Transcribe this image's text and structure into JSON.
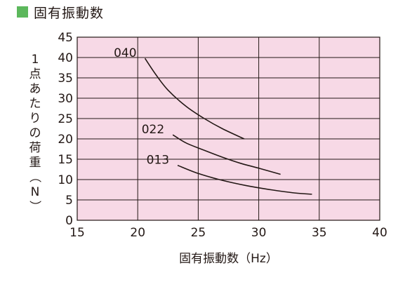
{
  "header": {
    "title": "固有振動数",
    "marker_color": "#5cb85c"
  },
  "chart_data": {
    "type": "line",
    "xlabel": "固有振動数（Hz）",
    "ylabel": "1点あたりの荷重（N）",
    "xlim": [
      15,
      40
    ],
    "ylim": [
      0,
      45
    ],
    "xticks": [
      15,
      20,
      25,
      30,
      35,
      40
    ],
    "yticks": [
      0,
      5,
      10,
      15,
      20,
      25,
      30,
      35,
      40,
      45
    ],
    "grid": true,
    "plot_background": "#f7d9e6",
    "grid_color": "#231815",
    "series": [
      {
        "name": "040",
        "color": "#231815",
        "points": [
          [
            20.6,
            39.8
          ],
          [
            21.5,
            35.8
          ],
          [
            22.5,
            32.0
          ],
          [
            24.0,
            28.0
          ],
          [
            25.5,
            25.0
          ],
          [
            27.0,
            22.5
          ],
          [
            28.8,
            20.0
          ]
        ]
      },
      {
        "name": "022",
        "color": "#231815",
        "points": [
          [
            22.9,
            21.0
          ],
          [
            24.0,
            19.0
          ],
          [
            25.5,
            17.2
          ],
          [
            27.0,
            15.5
          ],
          [
            28.5,
            14.0
          ],
          [
            30.0,
            12.8
          ],
          [
            31.8,
            11.3
          ]
        ]
      },
      {
        "name": "013",
        "color": "#231815",
        "points": [
          [
            23.3,
            13.5
          ],
          [
            25.0,
            11.5
          ],
          [
            27.0,
            9.8
          ],
          [
            29.0,
            8.5
          ],
          [
            31.0,
            7.5
          ],
          [
            33.0,
            6.7
          ],
          [
            34.4,
            6.4
          ]
        ]
      }
    ]
  }
}
